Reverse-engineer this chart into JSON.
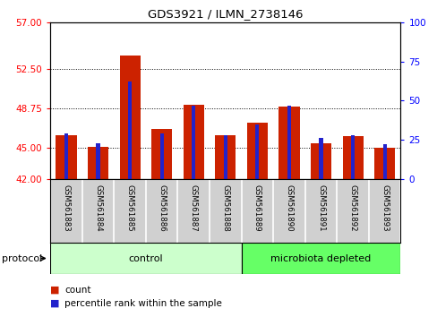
{
  "title": "GDS3921 / ILMN_2738146",
  "samples": [
    "GSM561883",
    "GSM561884",
    "GSM561885",
    "GSM561886",
    "GSM561887",
    "GSM561888",
    "GSM561889",
    "GSM561890",
    "GSM561891",
    "GSM561892",
    "GSM561893"
  ],
  "red_values": [
    46.2,
    45.1,
    53.8,
    46.8,
    49.1,
    46.2,
    47.4,
    48.9,
    45.4,
    46.1,
    45.0
  ],
  "blue_values": [
    29,
    23,
    62,
    29,
    47,
    28,
    35,
    47,
    26,
    28,
    22
  ],
  "ylim_left": [
    42,
    57
  ],
  "ylim_right": [
    0,
    100
  ],
  "yticks_left": [
    42,
    45,
    48.75,
    52.5,
    57
  ],
  "yticks_right": [
    0,
    25,
    50,
    75,
    100
  ],
  "control_group": [
    0,
    1,
    2,
    3,
    4,
    5
  ],
  "microbiota_group": [
    6,
    7,
    8,
    9,
    10
  ],
  "control_color": "#ccffcc",
  "microbiota_color": "#66ff66",
  "bar_color_red": "#cc2200",
  "bar_color_blue": "#2222cc",
  "plot_bg": "#ffffff",
  "label_bg": "#d0d0d0"
}
